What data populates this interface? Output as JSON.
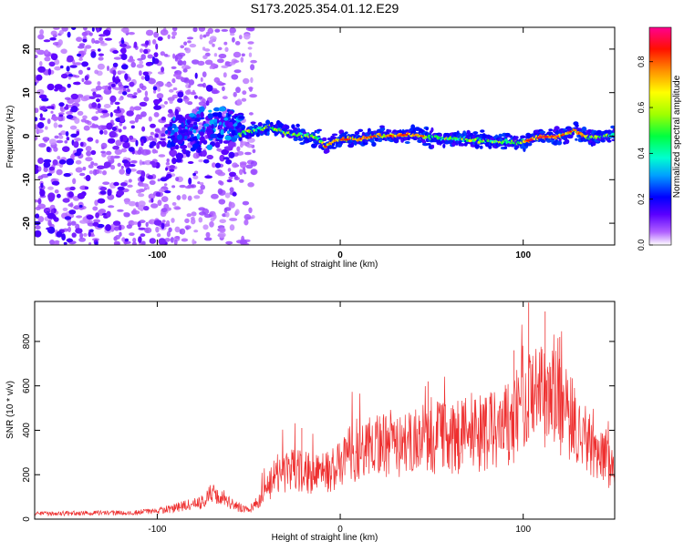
{
  "page_title": "S173.2025.354.01.12.E29",
  "chart_data": [
    {
      "type": "heatmap",
      "xlabel": "Height of straight line (km)",
      "ylabel": "Frequency (Hz)",
      "xlim": [
        -167,
        150
      ],
      "ylim": [
        -25,
        25
      ],
      "xticks": [
        -100,
        0,
        100
      ],
      "yticks": [
        -20,
        -10,
        0,
        10,
        20
      ],
      "colorbar": {
        "label": "Normalized spectral amplitude",
        "range": [
          0.0,
          0.95
        ],
        "ticks": [
          0.0,
          0.2,
          0.4,
          0.6,
          0.8
        ],
        "colormap": [
          "#ffffff",
          "#8000ff",
          "#0000ff",
          "#00c8ff",
          "#00ff80",
          "#80ff00",
          "#ffff00",
          "#ff8000",
          "#ff0000",
          "#ff00a0"
        ]
      },
      "ridge": {
        "x_range": [
          -55,
          150
        ],
        "freq_points": [
          [
            -55,
            0.5
          ],
          [
            -45,
            1.5
          ],
          [
            -38,
            2.2
          ],
          [
            -30,
            0.8
          ],
          [
            -20,
            0.2
          ],
          [
            -12,
            -0.5
          ],
          [
            -8,
            -2.5
          ],
          [
            -4,
            -1.2
          ],
          [
            0,
            -0.8
          ],
          [
            10,
            -0.7
          ],
          [
            20,
            0.1
          ],
          [
            30,
            0.1
          ],
          [
            40,
            0.4
          ],
          [
            50,
            -0.4
          ],
          [
            60,
            -0.5
          ],
          [
            70,
            -0.8
          ],
          [
            80,
            -1.0
          ],
          [
            90,
            -1.4
          ],
          [
            100,
            -1.3
          ],
          [
            110,
            -0.2
          ],
          [
            120,
            0.0
          ],
          [
            128,
            1.4
          ],
          [
            135,
            -0.3
          ],
          [
            145,
            0.0
          ],
          [
            150,
            0.3
          ]
        ],
        "peak_amplitude_regions": [
          [
            -10,
            45
          ],
          [
            100,
            135
          ]
        ]
      },
      "noise_region_x": [
        -167,
        -55
      ]
    },
    {
      "type": "line",
      "xlabel": "Height of straight line (km)",
      "ylabel": "SNR (10 * v/v)",
      "xlim": [
        -167,
        150
      ],
      "ylim": [
        0,
        980
      ],
      "xticks": [
        -100,
        0,
        100
      ],
      "yticks": [
        0,
        200,
        400,
        600,
        800
      ],
      "series": [
        {
          "color": "#ee3030",
          "envelope": [
            [
              -167,
              25
            ],
            [
              -120,
              28
            ],
            [
              -100,
              35
            ],
            [
              -85,
              60
            ],
            [
              -75,
              80
            ],
            [
              -70,
              120
            ],
            [
              -65,
              110
            ],
            [
              -58,
              60
            ],
            [
              -50,
              40
            ],
            [
              -44,
              85
            ],
            [
              -35,
              200
            ],
            [
              -25,
              230
            ],
            [
              -15,
              200
            ],
            [
              -5,
              220
            ],
            [
              5,
              290
            ],
            [
              15,
              320
            ],
            [
              25,
              330
            ],
            [
              40,
              340
            ],
            [
              50,
              370
            ],
            [
              60,
              360
            ],
            [
              70,
              380
            ],
            [
              80,
              390
            ],
            [
              90,
              420
            ],
            [
              100,
              500
            ],
            [
              108,
              560
            ],
            [
              115,
              540
            ],
            [
              122,
              500
            ],
            [
              130,
              400
            ],
            [
              140,
              300
            ],
            [
              150,
              230
            ]
          ]
        }
      ]
    }
  ],
  "colors": {
    "background": "#ffffff",
    "axis": "#000000",
    "snr_line": "#ee3030"
  }
}
